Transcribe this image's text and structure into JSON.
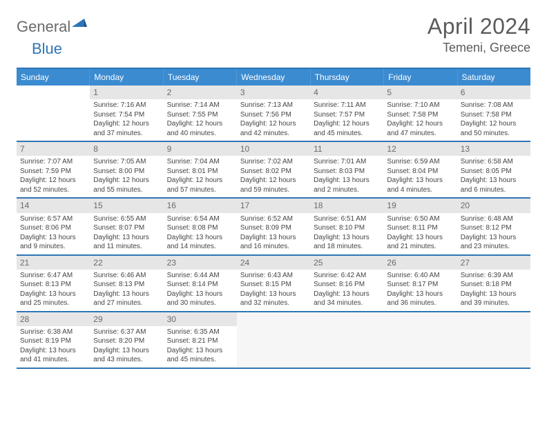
{
  "logo": {
    "general": "General",
    "blue": "Blue"
  },
  "title": "April 2024",
  "subtitle": "Temeni, Greece",
  "weekdays": [
    "Sunday",
    "Monday",
    "Tuesday",
    "Wednesday",
    "Thursday",
    "Friday",
    "Saturday"
  ],
  "colors": {
    "header_bar": "#3b8bd0",
    "row_divider": "#2e75b6",
    "daynum_bg": "#e6e6e6",
    "logo_gray": "#6a6a6a",
    "logo_blue": "#2e75b6"
  },
  "weeks": [
    [
      {
        "empty": true
      },
      {
        "num": "1",
        "sunrise": "7:16 AM",
        "sunset": "7:54 PM",
        "daylight": "12 hours and 37 minutes."
      },
      {
        "num": "2",
        "sunrise": "7:14 AM",
        "sunset": "7:55 PM",
        "daylight": "12 hours and 40 minutes."
      },
      {
        "num": "3",
        "sunrise": "7:13 AM",
        "sunset": "7:56 PM",
        "daylight": "12 hours and 42 minutes."
      },
      {
        "num": "4",
        "sunrise": "7:11 AM",
        "sunset": "7:57 PM",
        "daylight": "12 hours and 45 minutes."
      },
      {
        "num": "5",
        "sunrise": "7:10 AM",
        "sunset": "7:58 PM",
        "daylight": "12 hours and 47 minutes."
      },
      {
        "num": "6",
        "sunrise": "7:08 AM",
        "sunset": "7:58 PM",
        "daylight": "12 hours and 50 minutes."
      }
    ],
    [
      {
        "num": "7",
        "sunrise": "7:07 AM",
        "sunset": "7:59 PM",
        "daylight": "12 hours and 52 minutes."
      },
      {
        "num": "8",
        "sunrise": "7:05 AM",
        "sunset": "8:00 PM",
        "daylight": "12 hours and 55 minutes."
      },
      {
        "num": "9",
        "sunrise": "7:04 AM",
        "sunset": "8:01 PM",
        "daylight": "12 hours and 57 minutes."
      },
      {
        "num": "10",
        "sunrise": "7:02 AM",
        "sunset": "8:02 PM",
        "daylight": "12 hours and 59 minutes."
      },
      {
        "num": "11",
        "sunrise": "7:01 AM",
        "sunset": "8:03 PM",
        "daylight": "13 hours and 2 minutes."
      },
      {
        "num": "12",
        "sunrise": "6:59 AM",
        "sunset": "8:04 PM",
        "daylight": "13 hours and 4 minutes."
      },
      {
        "num": "13",
        "sunrise": "6:58 AM",
        "sunset": "8:05 PM",
        "daylight": "13 hours and 6 minutes."
      }
    ],
    [
      {
        "num": "14",
        "sunrise": "6:57 AM",
        "sunset": "8:06 PM",
        "daylight": "13 hours and 9 minutes."
      },
      {
        "num": "15",
        "sunrise": "6:55 AM",
        "sunset": "8:07 PM",
        "daylight": "13 hours and 11 minutes."
      },
      {
        "num": "16",
        "sunrise": "6:54 AM",
        "sunset": "8:08 PM",
        "daylight": "13 hours and 14 minutes."
      },
      {
        "num": "17",
        "sunrise": "6:52 AM",
        "sunset": "8:09 PM",
        "daylight": "13 hours and 16 minutes."
      },
      {
        "num": "18",
        "sunrise": "6:51 AM",
        "sunset": "8:10 PM",
        "daylight": "13 hours and 18 minutes."
      },
      {
        "num": "19",
        "sunrise": "6:50 AM",
        "sunset": "8:11 PM",
        "daylight": "13 hours and 21 minutes."
      },
      {
        "num": "20",
        "sunrise": "6:48 AM",
        "sunset": "8:12 PM",
        "daylight": "13 hours and 23 minutes."
      }
    ],
    [
      {
        "num": "21",
        "sunrise": "6:47 AM",
        "sunset": "8:13 PM",
        "daylight": "13 hours and 25 minutes."
      },
      {
        "num": "22",
        "sunrise": "6:46 AM",
        "sunset": "8:13 PM",
        "daylight": "13 hours and 27 minutes."
      },
      {
        "num": "23",
        "sunrise": "6:44 AM",
        "sunset": "8:14 PM",
        "daylight": "13 hours and 30 minutes."
      },
      {
        "num": "24",
        "sunrise": "6:43 AM",
        "sunset": "8:15 PM",
        "daylight": "13 hours and 32 minutes."
      },
      {
        "num": "25",
        "sunrise": "6:42 AM",
        "sunset": "8:16 PM",
        "daylight": "13 hours and 34 minutes."
      },
      {
        "num": "26",
        "sunrise": "6:40 AM",
        "sunset": "8:17 PM",
        "daylight": "13 hours and 36 minutes."
      },
      {
        "num": "27",
        "sunrise": "6:39 AM",
        "sunset": "8:18 PM",
        "daylight": "13 hours and 39 minutes."
      }
    ],
    [
      {
        "num": "28",
        "sunrise": "6:38 AM",
        "sunset": "8:19 PM",
        "daylight": "13 hours and 41 minutes."
      },
      {
        "num": "29",
        "sunrise": "6:37 AM",
        "sunset": "8:20 PM",
        "daylight": "13 hours and 43 minutes."
      },
      {
        "num": "30",
        "sunrise": "6:35 AM",
        "sunset": "8:21 PM",
        "daylight": "13 hours and 45 minutes."
      },
      {
        "blank": true
      },
      {
        "blank": true
      },
      {
        "blank": true
      },
      {
        "blank": true
      }
    ]
  ],
  "labels": {
    "sunrise": "Sunrise:",
    "sunset": "Sunset:",
    "daylight": "Daylight:"
  }
}
